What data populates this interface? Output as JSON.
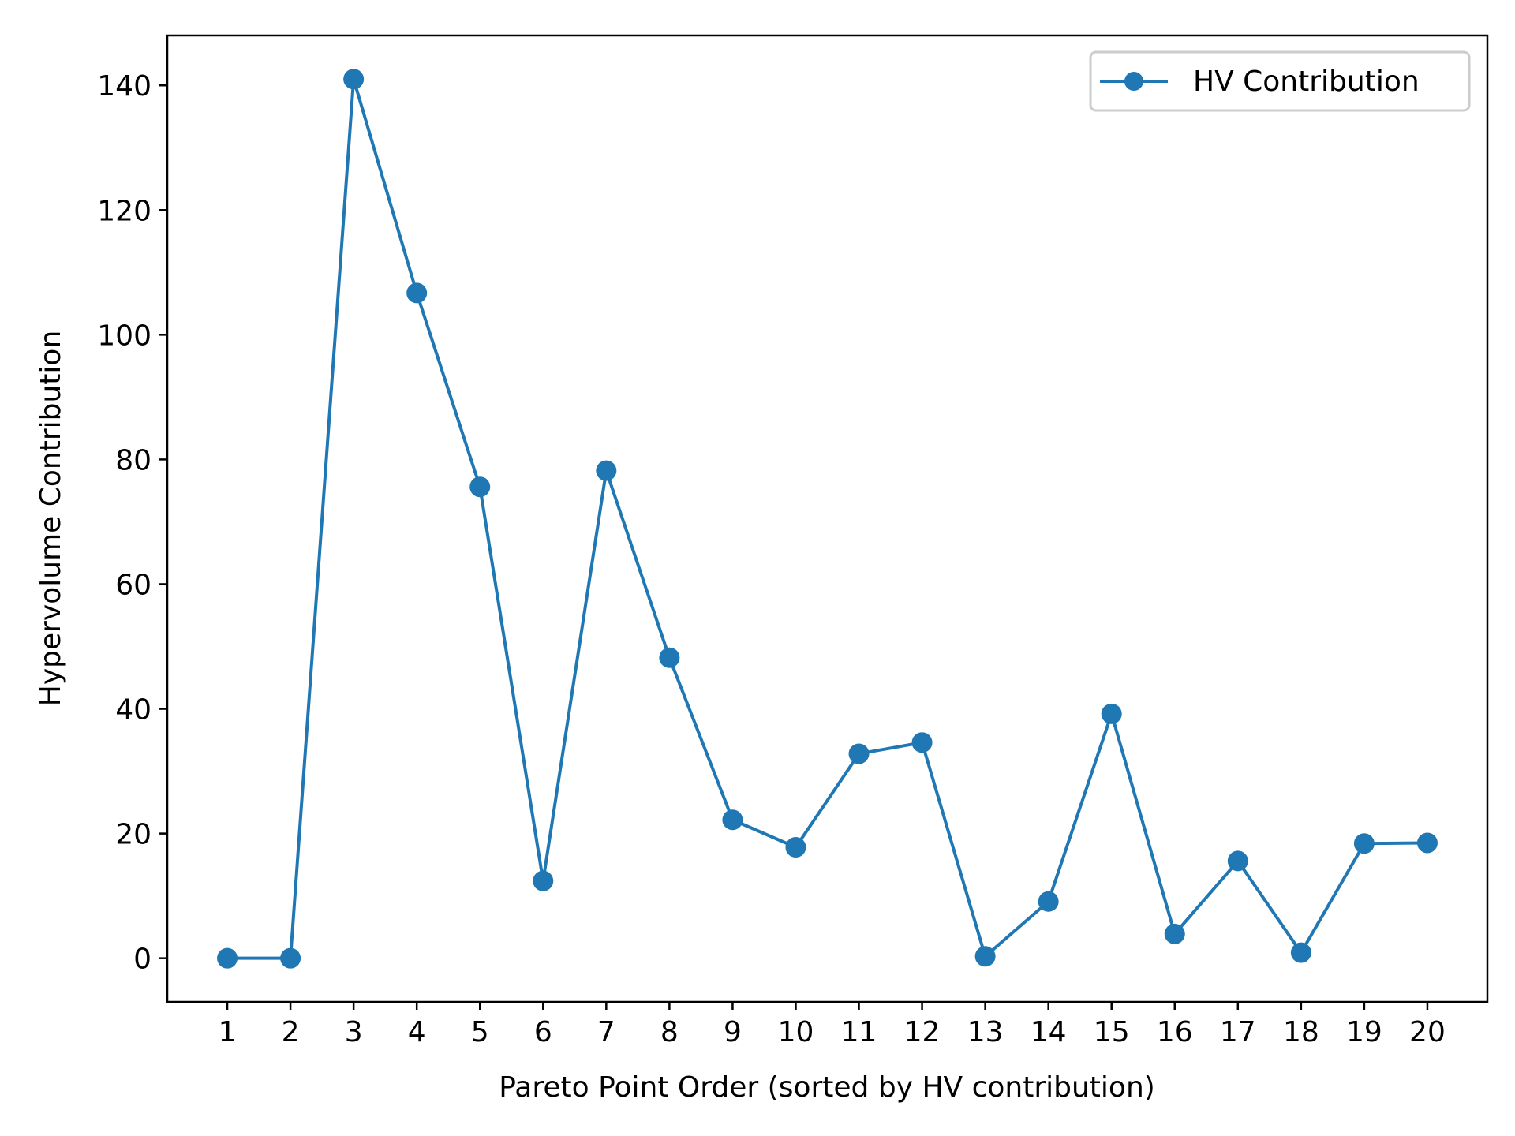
{
  "chart_data": {
    "type": "line",
    "xlabel": "Pareto Point Order (sorted by HV contribution)",
    "ylabel": "Hypervolume Contribution",
    "x": [
      1,
      2,
      3,
      4,
      5,
      6,
      7,
      8,
      9,
      10,
      11,
      12,
      13,
      14,
      15,
      16,
      17,
      18,
      19,
      20
    ],
    "xticks": [
      "1",
      "2",
      "3",
      "4",
      "5",
      "6",
      "7",
      "8",
      "9",
      "10",
      "11",
      "12",
      "13",
      "14",
      "15",
      "16",
      "17",
      "18",
      "19",
      "20"
    ],
    "yticks": [
      "0",
      "20",
      "40",
      "60",
      "80",
      "100",
      "120",
      "140"
    ],
    "ylim": [
      -7,
      148
    ],
    "xlim": [
      0.05,
      20.95
    ],
    "series": [
      {
        "name": "HV Contribution",
        "color": "#1f77b4",
        "marker": "circle",
        "values": [
          0,
          0,
          141,
          106.7,
          75.6,
          12.4,
          78.2,
          48.2,
          22.2,
          17.8,
          32.8,
          34.6,
          0.3,
          9.1,
          39.2,
          3.9,
          15.6,
          0.9,
          18.4,
          18.5
        ]
      }
    ],
    "legend_position": "top-right",
    "grid": false
  }
}
